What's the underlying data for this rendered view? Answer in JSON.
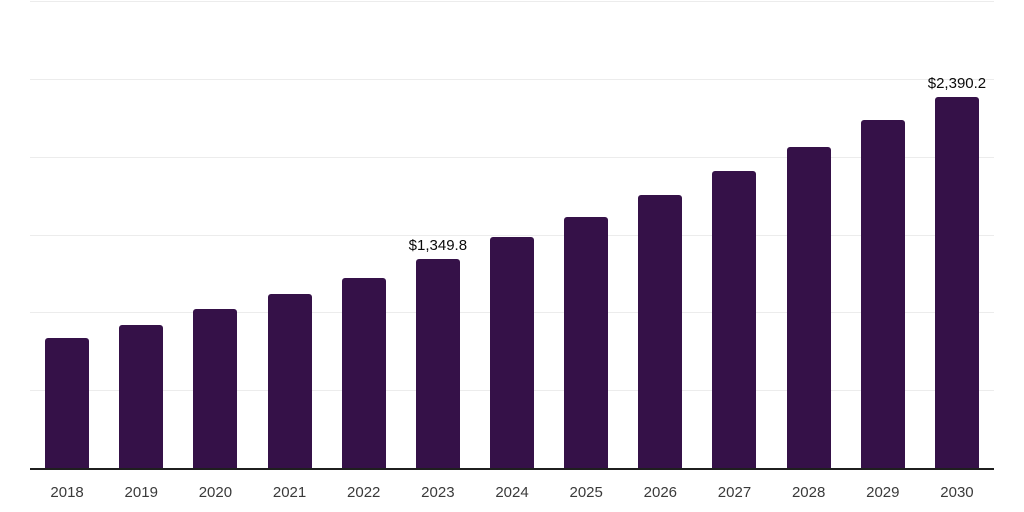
{
  "chart_data": {
    "type": "bar",
    "categories": [
      "2018",
      "2019",
      "2020",
      "2021",
      "2022",
      "2023",
      "2024",
      "2025",
      "2026",
      "2027",
      "2028",
      "2029",
      "2030"
    ],
    "values": [
      841,
      928,
      1028,
      1124,
      1227,
      1349.8,
      1490,
      1618,
      1760,
      1914,
      2068,
      2241,
      2390.2
    ],
    "data_labels": [
      {
        "index": 5,
        "text": "$1,349.8"
      },
      {
        "index": 12,
        "text": "$2,390.2"
      }
    ],
    "title": "",
    "xlabel": "",
    "ylabel": "",
    "ylim": [
      0,
      3000
    ],
    "gridline_step": 500,
    "grid": "horizontal",
    "legend": "none",
    "bar_color": "#351148",
    "axis_color": "#1f1f1f",
    "grid_color": "#ececec",
    "tick_label_color": "#3a3a3a",
    "data_label_color": "#0a0a0a"
  }
}
